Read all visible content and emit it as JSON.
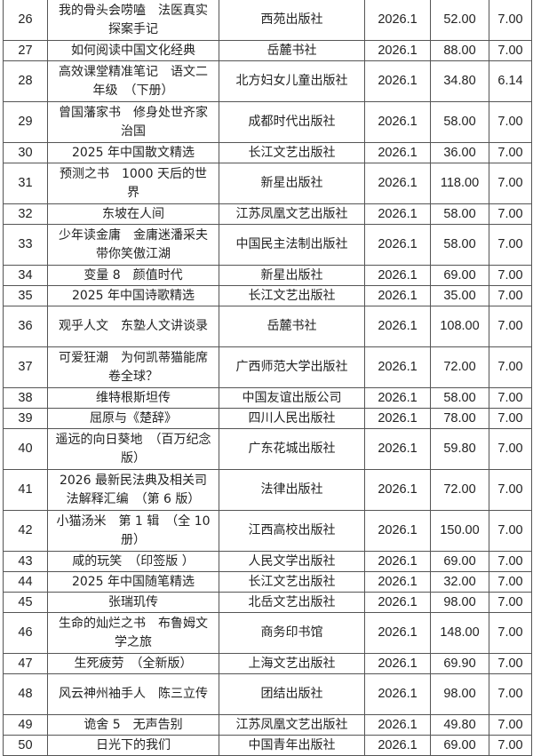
{
  "rows": [
    {
      "no": "26",
      "title": "我的骨头会唠嗑　法医真实探案手记",
      "publisher": "西苑出版社",
      "date": "2026.1",
      "price": "52.00",
      "discount": "7.00"
    },
    {
      "no": "27",
      "title": "如何阅读中国文化经典",
      "publisher": "岳麓书社",
      "date": "2026.1",
      "price": "88.00",
      "discount": "7.00"
    },
    {
      "no": "28",
      "title": "高效课堂精准笔记　语文二年级　（下册）",
      "publisher": "北方妇女儿童出版社",
      "date": "2026.1",
      "price": "34.80",
      "discount": "6.14"
    },
    {
      "no": "29",
      "title": "曾国藩家书　修身处世齐家治国",
      "publisher": "成都时代出版社",
      "date": "2026.1",
      "price": "58.00",
      "discount": "7.00"
    },
    {
      "no": "30",
      "title": "2025 年中国散文精选",
      "publisher": "长江文艺出版社",
      "date": "2026.1",
      "price": "36.00",
      "discount": "7.00"
    },
    {
      "no": "31",
      "title": "预测之书　1000 天后的世界",
      "publisher": "新星出版社",
      "date": "2026.1",
      "price": "118.00",
      "discount": "7.00"
    },
    {
      "no": "32",
      "title": "东坡在人间",
      "publisher": "江苏凤凰文艺出版社",
      "date": "2026.1",
      "price": "58.00",
      "discount": "7.00"
    },
    {
      "no": "33",
      "title": "少年读金庸　金庸迷潘采夫带你笑傲江湖",
      "publisher": "中国民主法制出版社",
      "date": "2026.1",
      "price": "58.00",
      "discount": "7.00"
    },
    {
      "no": "34",
      "title": "变量 8　颜值时代",
      "publisher": "新星出版社",
      "date": "2026.1",
      "price": "69.00",
      "discount": "7.00"
    },
    {
      "no": "35",
      "title": "2025 年中国诗歌精选",
      "publisher": "长江文艺出版社",
      "date": "2026.1",
      "price": "35.00",
      "discount": "7.00"
    },
    {
      "no": "36",
      "title": "观乎人文　东塾人文讲谈录",
      "publisher": "岳麓书社",
      "date": "2026.1",
      "price": "108.00",
      "discount": "7.00"
    },
    {
      "no": "37",
      "title": "可爱狂潮　为何凯蒂猫能席卷全球？",
      "publisher": "广西师范大学出版社",
      "date": "2026.1",
      "price": "72.00",
      "discount": "7.00"
    },
    {
      "no": "38",
      "title": "维特根斯坦传",
      "publisher": "中国友谊出版公司",
      "date": "2026.1",
      "price": "58.00",
      "discount": "7.00"
    },
    {
      "no": "39",
      "title": "屈原与《楚辞》",
      "publisher": "四川人民出版社",
      "date": "2026.1",
      "price": "78.00",
      "discount": "7.00"
    },
    {
      "no": "40",
      "title": "遥远的向日葵地　（百万纪念版）",
      "publisher": "广东花城出版社",
      "date": "2026.1",
      "price": "59.80",
      "discount": "7.00"
    },
    {
      "no": "41",
      "title": "2026 最新民法典及相关司法解释汇编　（第 6 版）",
      "publisher": "法律出版社",
      "date": "2026.1",
      "price": "72.00",
      "discount": "7.00"
    },
    {
      "no": "42",
      "title": "小猫汤米　第 1 辑　（全 10 册）",
      "publisher": "江西高校出版社",
      "date": "2026.1",
      "price": "150.00",
      "discount": "7.00"
    },
    {
      "no": "43",
      "title": "咸的玩笑　（印签版 ）",
      "publisher": "人民文学出版社",
      "date": "2026.1",
      "price": "69.00",
      "discount": "7.00"
    },
    {
      "no": "44",
      "title": "2025 年中国随笔精选",
      "publisher": "长江文艺出版社",
      "date": "2026.1",
      "price": "32.00",
      "discount": "7.00"
    },
    {
      "no": "45",
      "title": "张瑞玑传",
      "publisher": "北岳文艺出版社",
      "date": "2026.1",
      "price": "98.00",
      "discount": "7.00"
    },
    {
      "no": "46",
      "title": "生命的灿烂之书　布鲁姆文学之旅",
      "publisher": "商务印书馆",
      "date": "2026.1",
      "price": "148.00",
      "discount": "7.00"
    },
    {
      "no": "47",
      "title": "生死疲劳　（全新版）",
      "publisher": "上海文艺出版社",
      "date": "2026.1",
      "price": "69.90",
      "discount": "7.00"
    },
    {
      "no": "48",
      "title": "风云神州袖手人　陈三立传",
      "publisher": "团结出版社",
      "date": "2026.1",
      "price": "98.00",
      "discount": "7.00"
    },
    {
      "no": "49",
      "title": "诡舍 5　无声告别",
      "publisher": "江苏凤凰文艺出版社",
      "date": "2026.1",
      "price": "49.80",
      "discount": "7.00"
    },
    {
      "no": "50",
      "title": "日光下的我们",
      "publisher": "中国青年出版社",
      "date": "2026.1",
      "price": "69.00",
      "discount": "7.00"
    }
  ]
}
